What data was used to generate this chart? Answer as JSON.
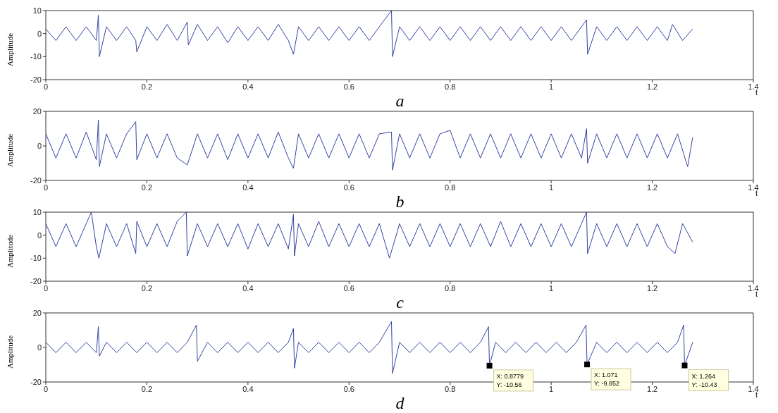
{
  "chart_data": [
    {
      "type": "line",
      "title": "a",
      "xlabel": "t",
      "ylabel": "Amplitude",
      "xlim": [
        0,
        1.4
      ],
      "xticks": [
        0,
        0.2,
        0.4,
        0.6,
        0.8,
        1,
        1.2,
        1.4
      ],
      "ylim": [
        -20,
        10
      ],
      "yticks": [
        -20,
        -10,
        0,
        10
      ],
      "series": [
        {
          "color": "#3342a3",
          "x": [
            0,
            0.02,
            0.04,
            0.06,
            0.08,
            0.1,
            0.104,
            0.106,
            0.12,
            0.14,
            0.16,
            0.178,
            0.18,
            0.2,
            0.22,
            0.24,
            0.26,
            0.28,
            0.282,
            0.3,
            0.32,
            0.34,
            0.36,
            0.38,
            0.4,
            0.42,
            0.44,
            0.46,
            0.48,
            0.49,
            0.5,
            0.52,
            0.54,
            0.56,
            0.58,
            0.6,
            0.62,
            0.64,
            0.66,
            0.684,
            0.686,
            0.7,
            0.72,
            0.74,
            0.76,
            0.78,
            0.8,
            0.82,
            0.84,
            0.86,
            0.88,
            0.9,
            0.92,
            0.94,
            0.96,
            0.98,
            1,
            1.02,
            1.04,
            1.06,
            1.07,
            1.072,
            1.09,
            1.11,
            1.13,
            1.15,
            1.17,
            1.19,
            1.21,
            1.23,
            1.24,
            1.26,
            1.28
          ],
          "values": [
            2,
            -3,
            3,
            -3,
            3,
            -3,
            8,
            -10,
            3,
            -3,
            3,
            -3,
            -8,
            3,
            -3,
            4,
            -3,
            5,
            -5,
            4,
            -3,
            3,
            -4,
            3,
            -3,
            3,
            -3,
            4,
            -3,
            -9,
            3,
            -3,
            3,
            -3,
            3,
            -3,
            3,
            -3,
            3,
            10,
            -10,
            3,
            -3,
            3,
            -3,
            3,
            -3,
            3,
            -3,
            3,
            -3,
            3,
            -3,
            3,
            -3,
            3,
            -3,
            3,
            -3,
            3,
            6,
            -9,
            3,
            -3,
            3,
            -3,
            3,
            -3,
            3,
            -3,
            4,
            -3,
            2
          ]
        }
      ]
    },
    {
      "type": "line",
      "title": "b",
      "xlabel": "t",
      "ylabel": "Amplitude",
      "xlim": [
        0,
        1.4
      ],
      "xticks": [
        0,
        0.2,
        0.4,
        0.6,
        0.8,
        1,
        1.2,
        1.4
      ],
      "ylim": [
        -20,
        20
      ],
      "yticks": [
        -20,
        0,
        20
      ],
      "series": [
        {
          "color": "#3342a3",
          "x": [
            0,
            0.02,
            0.04,
            0.06,
            0.08,
            0.1,
            0.104,
            0.106,
            0.12,
            0.14,
            0.16,
            0.178,
            0.18,
            0.2,
            0.22,
            0.24,
            0.26,
            0.28,
            0.3,
            0.32,
            0.34,
            0.36,
            0.38,
            0.4,
            0.42,
            0.44,
            0.46,
            0.48,
            0.49,
            0.5,
            0.52,
            0.54,
            0.56,
            0.58,
            0.6,
            0.62,
            0.64,
            0.66,
            0.684,
            0.686,
            0.7,
            0.72,
            0.74,
            0.76,
            0.78,
            0.8,
            0.82,
            0.84,
            0.86,
            0.88,
            0.9,
            0.92,
            0.94,
            0.96,
            0.98,
            1,
            1.02,
            1.04,
            1.06,
            1.07,
            1.072,
            1.09,
            1.11,
            1.13,
            1.15,
            1.17,
            1.19,
            1.21,
            1.23,
            1.25,
            1.27,
            1.28
          ],
          "values": [
            7,
            -7,
            7,
            -7,
            8,
            -8,
            15,
            -12,
            7,
            -7,
            7,
            14,
            -8,
            7,
            -7,
            7,
            -7,
            -11,
            7,
            -7,
            7,
            -8,
            7,
            -7,
            7,
            -7,
            8,
            -7,
            -13,
            7,
            -7,
            7,
            -7,
            7,
            -7,
            7,
            -7,
            7,
            8,
            -14,
            7,
            -7,
            7,
            -7,
            7,
            9,
            -7,
            7,
            -7,
            7,
            -7,
            7,
            -7,
            7,
            -7,
            7,
            -7,
            7,
            -7,
            10,
            -10,
            7,
            -7,
            7,
            -7,
            7,
            -7,
            7,
            -7,
            7,
            -12,
            5
          ]
        }
      ]
    },
    {
      "type": "line",
      "title": "c",
      "xlabel": "t",
      "ylabel": "Amplitude",
      "xlim": [
        0,
        1.4
      ],
      "xticks": [
        0,
        0.2,
        0.4,
        0.6,
        0.8,
        1,
        1.2,
        1.4
      ],
      "ylim": [
        -20,
        10
      ],
      "yticks": [
        -20,
        -10,
        0,
        10
      ],
      "series": [
        {
          "color": "#3342a3",
          "x": [
            0,
            0.02,
            0.04,
            0.06,
            0.08,
            0.09,
            0.1,
            0.105,
            0.12,
            0.14,
            0.16,
            0.178,
            0.18,
            0.2,
            0.22,
            0.24,
            0.26,
            0.278,
            0.28,
            0.3,
            0.32,
            0.34,
            0.36,
            0.38,
            0.4,
            0.42,
            0.44,
            0.46,
            0.48,
            0.49,
            0.492,
            0.5,
            0.52,
            0.54,
            0.56,
            0.58,
            0.6,
            0.62,
            0.64,
            0.66,
            0.68,
            0.7,
            0.72,
            0.74,
            0.76,
            0.78,
            0.8,
            0.82,
            0.84,
            0.86,
            0.88,
            0.9,
            0.92,
            0.94,
            0.96,
            0.98,
            1,
            1.02,
            1.04,
            1.06,
            1.07,
            1.072,
            1.09,
            1.11,
            1.13,
            1.15,
            1.17,
            1.19,
            1.21,
            1.23,
            1.245,
            1.26,
            1.28
          ],
          "values": [
            5,
            -5,
            5,
            -5,
            5,
            10,
            -5,
            -10,
            5,
            -5,
            5,
            -8,
            6,
            -5,
            5,
            -5,
            6,
            10,
            -9,
            5,
            -5,
            5,
            -5,
            5,
            -6,
            5,
            -5,
            5,
            -6,
            9,
            -9,
            5,
            -5,
            6,
            -5,
            5,
            -5,
            5,
            -5,
            5,
            -10,
            5,
            -5,
            5,
            -5,
            5,
            -5,
            5,
            -5,
            5,
            -5,
            6,
            -5,
            5,
            -5,
            5,
            -5,
            5,
            -5,
            5,
            10,
            -8,
            5,
            -5,
            5,
            -5,
            5,
            -5,
            5,
            -5,
            -8,
            5,
            -3
          ]
        }
      ]
    },
    {
      "type": "line",
      "title": "d",
      "xlabel": "t",
      "ylabel": "Amplitude",
      "xlim": [
        0,
        1.4
      ],
      "xticks": [
        0,
        0.2,
        0.4,
        0.6,
        0.8,
        1,
        1.2,
        1.4
      ],
      "ylim": [
        -20,
        20
      ],
      "yticks": [
        -20,
        0,
        20
      ],
      "annotations": [
        {
          "text": "X: 0.8779\nY: -10.56",
          "x": 0.8779,
          "y": -10.56
        },
        {
          "text": "X: 1.071\nY: -9.852",
          "x": 1.071,
          "y": -9.852
        },
        {
          "text": "X: 1.264\nY: -10.43",
          "x": 1.264,
          "y": -10.43
        }
      ],
      "series": [
        {
          "color": "#3342a3",
          "x": [
            0,
            0.02,
            0.04,
            0.06,
            0.08,
            0.1,
            0.104,
            0.106,
            0.12,
            0.14,
            0.16,
            0.18,
            0.2,
            0.22,
            0.24,
            0.26,
            0.28,
            0.298,
            0.3,
            0.32,
            0.34,
            0.36,
            0.38,
            0.4,
            0.42,
            0.44,
            0.46,
            0.48,
            0.49,
            0.492,
            0.5,
            0.52,
            0.54,
            0.56,
            0.58,
            0.6,
            0.62,
            0.64,
            0.66,
            0.684,
            0.686,
            0.7,
            0.72,
            0.74,
            0.76,
            0.78,
            0.8,
            0.82,
            0.84,
            0.86,
            0.876,
            0.8779,
            0.89,
            0.91,
            0.93,
            0.95,
            0.97,
            0.99,
            1.01,
            1.03,
            1.05,
            1.069,
            1.071,
            1.09,
            1.11,
            1.13,
            1.15,
            1.17,
            1.19,
            1.21,
            1.23,
            1.25,
            1.262,
            1.264,
            1.28
          ],
          "values": [
            3,
            -3,
            3,
            -3,
            3,
            -3,
            12,
            -5,
            3,
            -3,
            3,
            -3,
            3,
            -3,
            3,
            -3,
            3,
            13,
            -8,
            3,
            -3,
            3,
            -3,
            3,
            -3,
            3,
            -3,
            3,
            11,
            -12,
            3,
            -3,
            3,
            -3,
            3,
            -3,
            3,
            -3,
            3,
            15,
            -15,
            3,
            -3,
            3,
            -3,
            3,
            -3,
            3,
            -3,
            3,
            12,
            -10.56,
            3,
            -3,
            3,
            -3,
            3,
            -3,
            3,
            -3,
            3,
            13,
            -9.852,
            3,
            -3,
            3,
            -3,
            3,
            -3,
            3,
            -3,
            3,
            13,
            -10.43,
            3
          ]
        }
      ]
    }
  ]
}
